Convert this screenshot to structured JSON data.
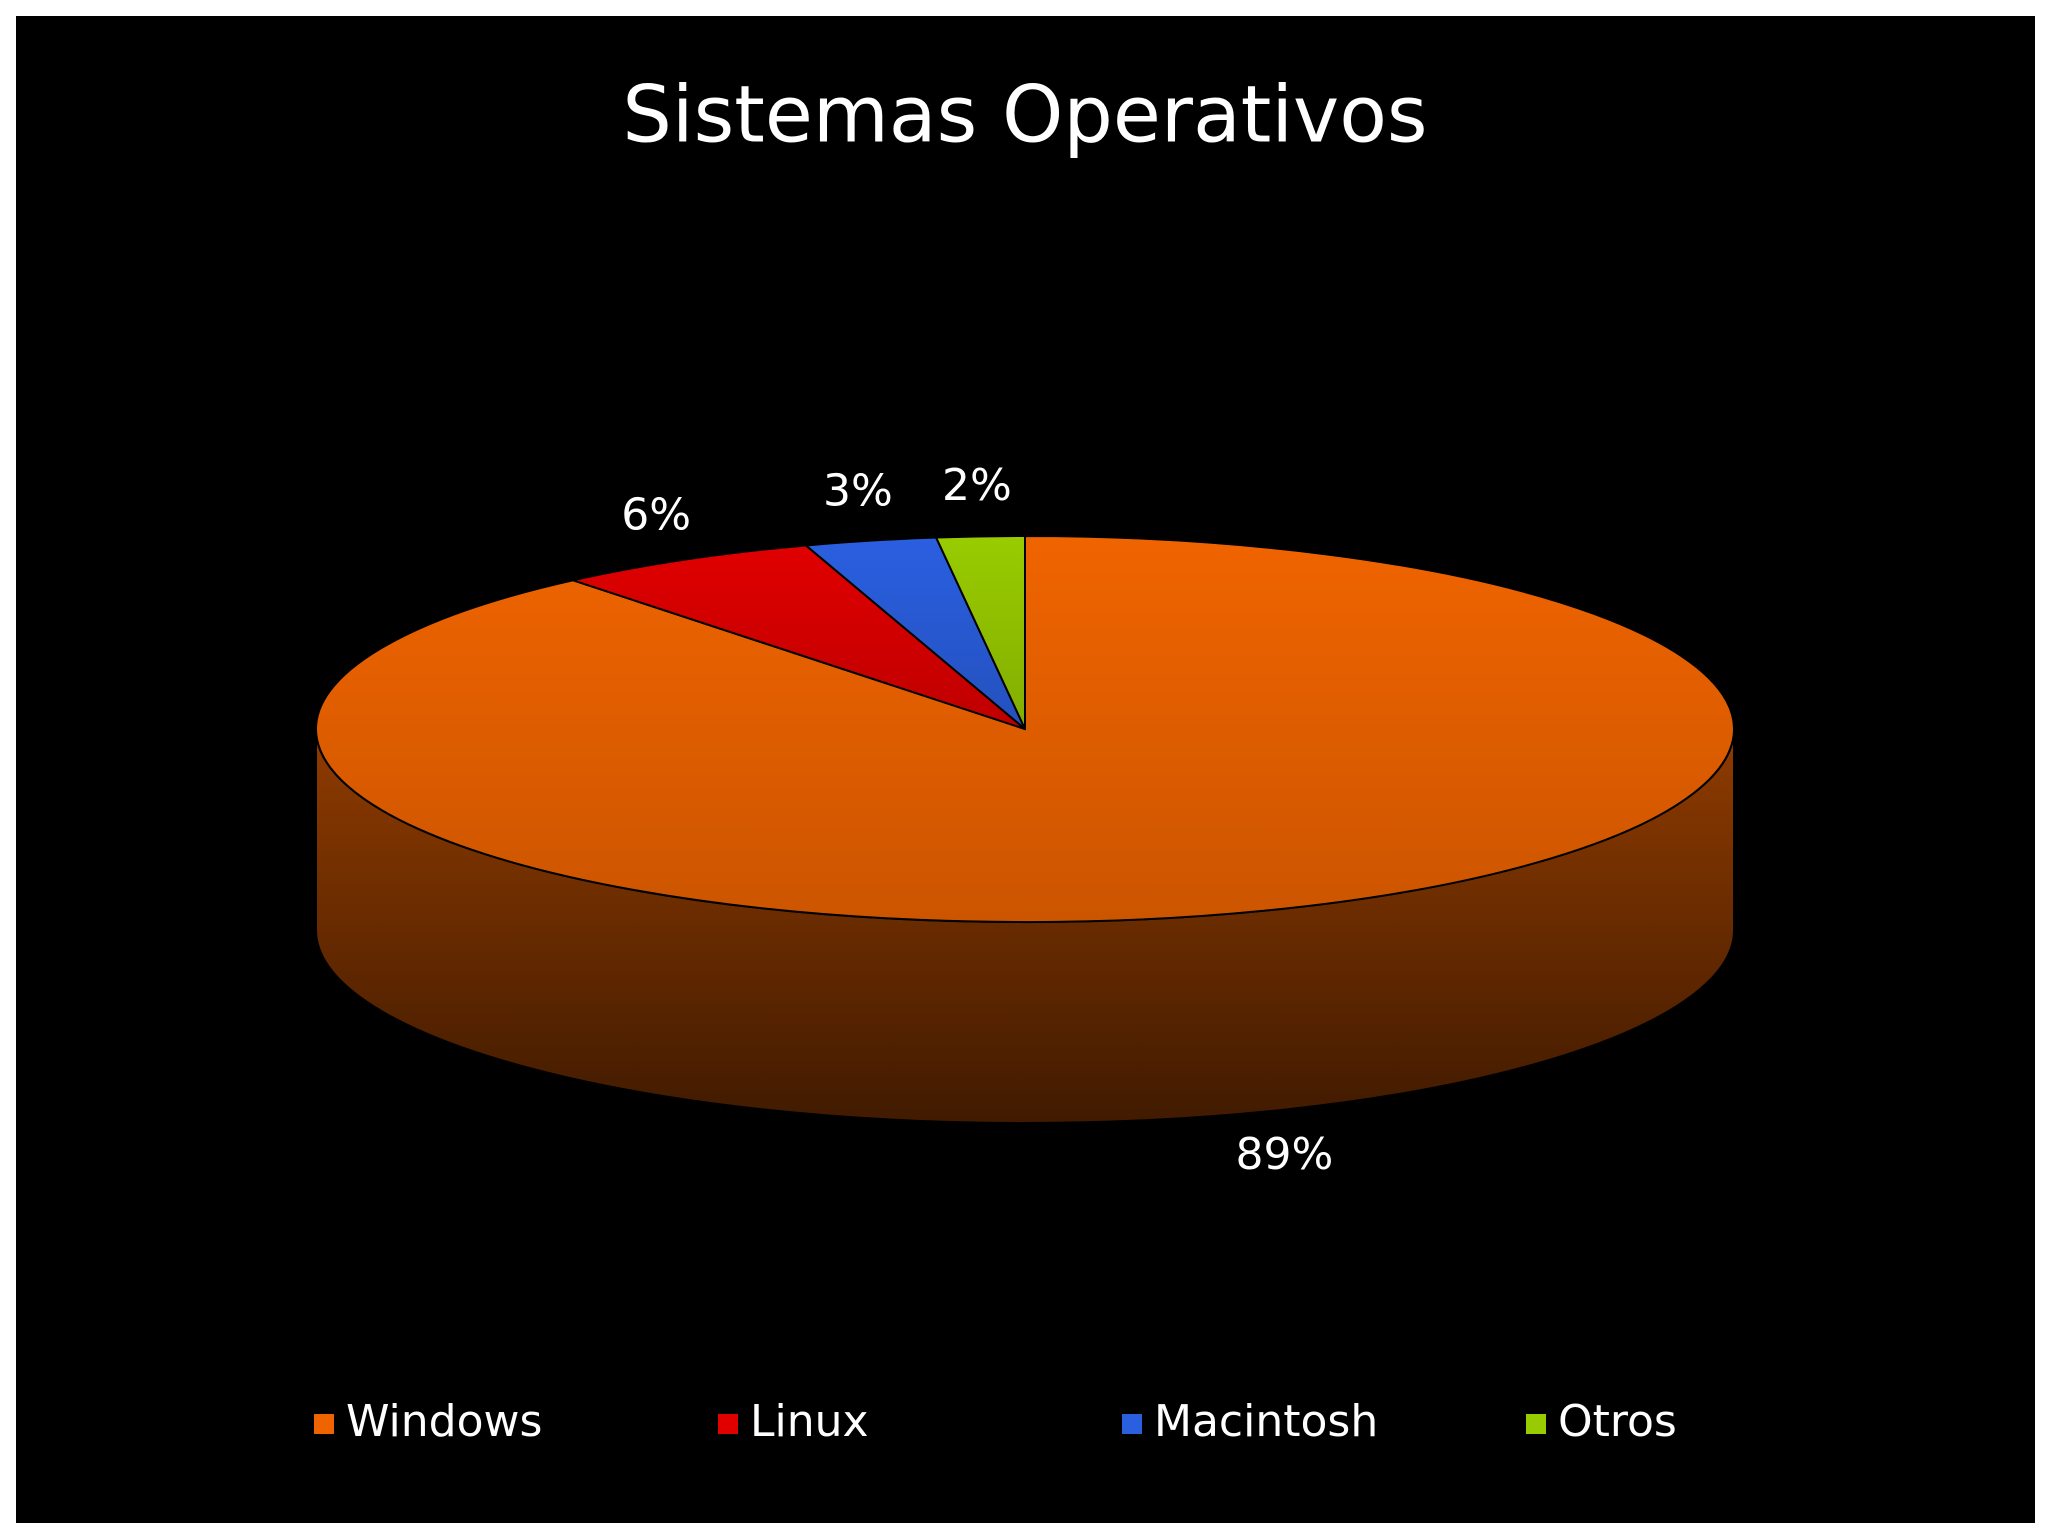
{
  "chart_data": {
    "type": "pie3d",
    "title": "Sistemas Operativos",
    "categories": [
      "Windows",
      "Linux",
      "Macintosh",
      "Otros"
    ],
    "values": [
      89,
      6,
      3,
      2
    ],
    "value_labels": [
      "89%",
      "6%",
      "3%",
      "2%"
    ],
    "colors": [
      "#f06400",
      "#e00000",
      "#2a5fe0",
      "#99cc00"
    ],
    "legend": "bottom"
  }
}
